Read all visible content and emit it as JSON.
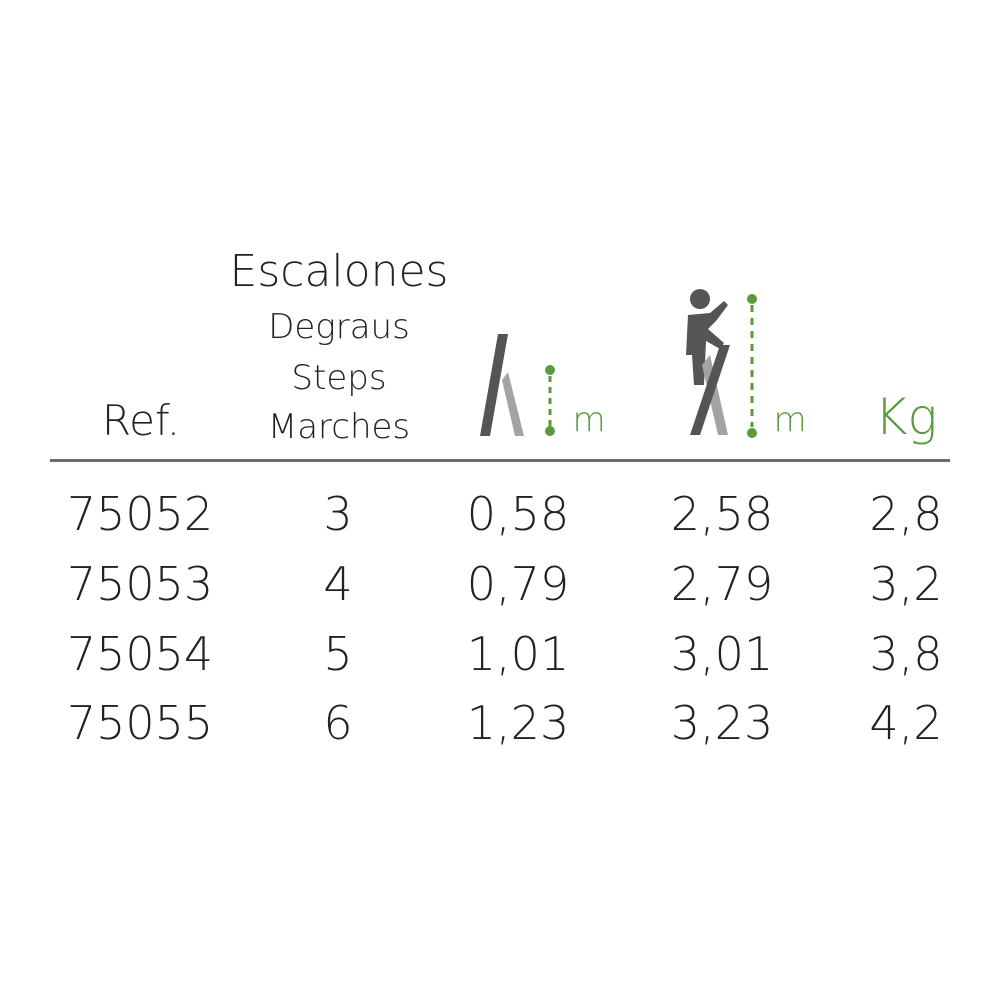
{
  "header": {
    "ref": "Ref.",
    "steps_lines": [
      "Escalones",
      "Degraus",
      "Steps",
      "Marches"
    ],
    "ladder_height_unit": "m",
    "working_height_unit": "m",
    "weight_unit": "Kg"
  },
  "icons": {
    "ladder_height": "ladder-height-icon",
    "working_height": "person-on-ladder-icon"
  },
  "colors": {
    "accent": "#5a9a3c",
    "dark_gray": "#555555",
    "light_gray": "#a3a3a3",
    "text": "#222222"
  },
  "rows": [
    {
      "ref": "75052",
      "steps": "3",
      "ladder_height": "0,58",
      "working_height": "2,58",
      "weight": "2,8"
    },
    {
      "ref": "75053",
      "steps": "4",
      "ladder_height": "0,79",
      "working_height": "2,79",
      "weight": "3,2"
    },
    {
      "ref": "75054",
      "steps": "5",
      "ladder_height": "1,01",
      "working_height": "3,01",
      "weight": "3,8"
    },
    {
      "ref": "75055",
      "steps": "6",
      "ladder_height": "1,23",
      "working_height": "3,23",
      "weight": "4,2"
    }
  ]
}
